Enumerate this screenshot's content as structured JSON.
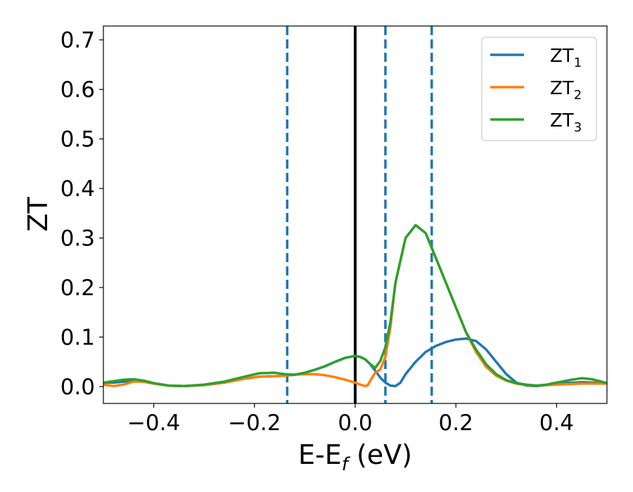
{
  "chart_data": {
    "type": "line",
    "title": "",
    "xlabel": "E-E",
    "xlabel_sub": "f",
    "xlabel_unit": " (eV)",
    "ylabel": "ZT",
    "xlim": [
      -0.5,
      0.5
    ],
    "ylim": [
      -0.034,
      0.728
    ],
    "xticks": [
      -0.4,
      -0.2,
      0.0,
      0.2,
      0.4
    ],
    "xtick_labels": [
      "−0.4",
      "−0.2",
      "0.0",
      "0.2",
      "0.4"
    ],
    "yticks": [
      0.0,
      0.1,
      0.2,
      0.3,
      0.4,
      0.5,
      0.6,
      0.7
    ],
    "ytick_labels": [
      "0.0",
      "0.1",
      "0.2",
      "0.3",
      "0.4",
      "0.5",
      "0.6",
      "0.7"
    ],
    "grid": false,
    "legend_position": "top-right",
    "series": [
      {
        "name": "ZT",
        "name_sub": "1",
        "color": "#1f77b4",
        "points": [
          [
            -0.5,
            0.008
          ],
          [
            -0.48,
            0.008
          ],
          [
            -0.46,
            0.01
          ],
          [
            -0.44,
            0.012
          ],
          [
            -0.42,
            0.01
          ],
          [
            -0.4,
            0.006
          ],
          [
            -0.37,
            0.002
          ],
          [
            -0.34,
            0.001
          ],
          [
            -0.3,
            0.003
          ],
          [
            -0.26,
            0.008
          ],
          [
            -0.22,
            0.016
          ],
          [
            -0.19,
            0.02
          ],
          [
            -0.16,
            0.021
          ],
          [
            -0.14,
            0.022
          ],
          [
            -0.12,
            0.024
          ],
          [
            -0.1,
            0.028
          ],
          [
            -0.08,
            0.034
          ],
          [
            -0.06,
            0.041
          ],
          [
            -0.04,
            0.05
          ],
          [
            -0.02,
            0.058
          ],
          [
            0.0,
            0.062
          ],
          [
            0.01,
            0.06
          ],
          [
            0.02,
            0.055
          ],
          [
            0.03,
            0.045
          ],
          [
            0.04,
            0.032
          ],
          [
            0.05,
            0.018
          ],
          [
            0.06,
            0.008
          ],
          [
            0.07,
            0.002
          ],
          [
            0.08,
            0.001
          ],
          [
            0.09,
            0.008
          ],
          [
            0.1,
            0.025
          ],
          [
            0.12,
            0.05
          ],
          [
            0.14,
            0.07
          ],
          [
            0.16,
            0.082
          ],
          [
            0.18,
            0.09
          ],
          [
            0.2,
            0.095
          ],
          [
            0.22,
            0.097
          ],
          [
            0.24,
            0.092
          ],
          [
            0.26,
            0.075
          ],
          [
            0.28,
            0.05
          ],
          [
            0.3,
            0.025
          ],
          [
            0.32,
            0.008
          ],
          [
            0.34,
            0.002
          ],
          [
            0.36,
            0.001
          ],
          [
            0.38,
            0.003
          ],
          [
            0.4,
            0.006
          ],
          [
            0.45,
            0.009
          ],
          [
            0.5,
            0.007
          ]
        ]
      },
      {
        "name": "ZT",
        "name_sub": "2",
        "color": "#ff7f0e",
        "points": [
          [
            -0.5,
            0.004
          ],
          [
            -0.48,
            0.001
          ],
          [
            -0.46,
            0.004
          ],
          [
            -0.44,
            0.01
          ],
          [
            -0.42,
            0.01
          ],
          [
            -0.4,
            0.006
          ],
          [
            -0.37,
            0.002
          ],
          [
            -0.34,
            0.001
          ],
          [
            -0.3,
            0.003
          ],
          [
            -0.26,
            0.008
          ],
          [
            -0.22,
            0.016
          ],
          [
            -0.19,
            0.02
          ],
          [
            -0.16,
            0.021
          ],
          [
            -0.14,
            0.022
          ],
          [
            -0.12,
            0.024
          ],
          [
            -0.1,
            0.025
          ],
          [
            -0.08,
            0.025
          ],
          [
            -0.06,
            0.023
          ],
          [
            -0.04,
            0.019
          ],
          [
            -0.02,
            0.014
          ],
          [
            0.0,
            0.008
          ],
          [
            0.01,
            0.004
          ],
          [
            0.02,
            0.001
          ],
          [
            0.025,
            0.003
          ],
          [
            0.03,
            0.012
          ],
          [
            0.04,
            0.028
          ],
          [
            0.05,
            0.035
          ],
          [
            0.06,
            0.06
          ],
          [
            0.07,
            0.12
          ],
          [
            0.08,
            0.21
          ],
          [
            0.1,
            0.3
          ],
          [
            0.12,
            0.326
          ],
          [
            0.14,
            0.31
          ],
          [
            0.16,
            0.26
          ],
          [
            0.18,
            0.21
          ],
          [
            0.2,
            0.16
          ],
          [
            0.22,
            0.11
          ],
          [
            0.24,
            0.07
          ],
          [
            0.26,
            0.04
          ],
          [
            0.28,
            0.022
          ],
          [
            0.3,
            0.012
          ],
          [
            0.32,
            0.006
          ],
          [
            0.34,
            0.003
          ],
          [
            0.36,
            0.002
          ],
          [
            0.38,
            0.003
          ],
          [
            0.4,
            0.004
          ],
          [
            0.45,
            0.006
          ],
          [
            0.5,
            0.006
          ]
        ]
      },
      {
        "name": "ZT",
        "name_sub": "3",
        "color": "#2ca02c",
        "points": [
          [
            -0.5,
            0.008
          ],
          [
            -0.48,
            0.011
          ],
          [
            -0.46,
            0.014
          ],
          [
            -0.44,
            0.015
          ],
          [
            -0.42,
            0.012
          ],
          [
            -0.4,
            0.007
          ],
          [
            -0.37,
            0.002
          ],
          [
            -0.34,
            0.001
          ],
          [
            -0.3,
            0.004
          ],
          [
            -0.26,
            0.01
          ],
          [
            -0.22,
            0.02
          ],
          [
            -0.19,
            0.027
          ],
          [
            -0.16,
            0.028
          ],
          [
            -0.14,
            0.025
          ],
          [
            -0.12,
            0.024
          ],
          [
            -0.1,
            0.028
          ],
          [
            -0.08,
            0.034
          ],
          [
            -0.06,
            0.041
          ],
          [
            -0.04,
            0.05
          ],
          [
            -0.02,
            0.058
          ],
          [
            0.0,
            0.062
          ],
          [
            0.01,
            0.06
          ],
          [
            0.02,
            0.055
          ],
          [
            0.03,
            0.045
          ],
          [
            0.04,
            0.038
          ],
          [
            0.05,
            0.052
          ],
          [
            0.06,
            0.08
          ],
          [
            0.07,
            0.13
          ],
          [
            0.08,
            0.21
          ],
          [
            0.1,
            0.3
          ],
          [
            0.12,
            0.326
          ],
          [
            0.14,
            0.31
          ],
          [
            0.16,
            0.26
          ],
          [
            0.18,
            0.21
          ],
          [
            0.2,
            0.16
          ],
          [
            0.22,
            0.11
          ],
          [
            0.24,
            0.075
          ],
          [
            0.26,
            0.045
          ],
          [
            0.28,
            0.025
          ],
          [
            0.3,
            0.013
          ],
          [
            0.32,
            0.007
          ],
          [
            0.34,
            0.004
          ],
          [
            0.36,
            0.002
          ],
          [
            0.38,
            0.004
          ],
          [
            0.4,
            0.008
          ],
          [
            0.43,
            0.014
          ],
          [
            0.45,
            0.017
          ],
          [
            0.47,
            0.015
          ],
          [
            0.5,
            0.007
          ]
        ]
      }
    ],
    "vertical_lines": [
      {
        "x": -0.135,
        "style": "dashed",
        "color": "#1f77b4"
      },
      {
        "x": 0.0,
        "style": "solid",
        "color": "#000000"
      },
      {
        "x": 0.06,
        "style": "dashed",
        "color": "#1f77b4"
      },
      {
        "x": 0.152,
        "style": "dashed",
        "color": "#1f77b4"
      }
    ]
  }
}
